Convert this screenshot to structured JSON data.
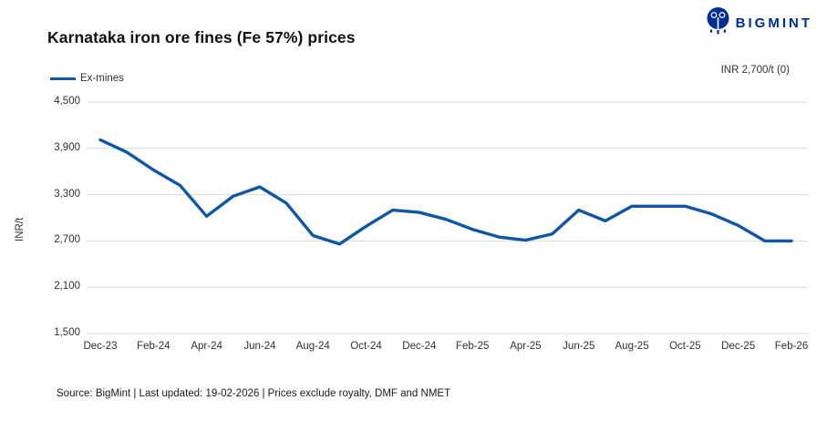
{
  "header": {
    "title": "Karnataka iron ore fines (Fe 57%) prices",
    "brand": {
      "name": "BIGMINT",
      "color": "#002d92"
    }
  },
  "legend": {
    "label": "Ex-mines"
  },
  "annotation": {
    "latest_price": "INR 2,700/t (0)"
  },
  "y_axis_title": "INR/t",
  "footer": {
    "text": "Source: BigMint | Last updated: 19-02-2026 | Prices exclude royalty, DMF and NMET"
  },
  "chart_data": {
    "type": "line",
    "title": "Karnataka iron ore fines (Fe 57%) prices",
    "xlabel": "",
    "ylabel": "INR/t",
    "ylim": [
      1500,
      4500
    ],
    "yticks": [
      4500,
      3900,
      3300,
      2700,
      2100,
      1500
    ],
    "ytick_labels": [
      "4,500",
      "3,900",
      "3,300",
      "2,700",
      "2,100",
      "1,500"
    ],
    "grid": true,
    "legend_position": "top-left",
    "x": [
      "Dec-23",
      "Jan-24",
      "Feb-24",
      "Mar-24",
      "Apr-24",
      "May-24",
      "Jun-24",
      "Jul-24",
      "Aug-24",
      "Sep-24",
      "Oct-24",
      "Nov-24",
      "Dec-24",
      "Jan-25",
      "Feb-25",
      "Mar-25",
      "Apr-25",
      "May-25",
      "Jun-25",
      "Jul-25",
      "Aug-25",
      "Sep-25",
      "Oct-25",
      "Nov-25",
      "Dec-25",
      "Jan-26",
      "Feb-26"
    ],
    "xtick_every": 2,
    "series": [
      {
        "name": "Ex-mines",
        "color": "#0f56a5",
        "values": [
          4010,
          3850,
          3620,
          3420,
          3020,
          3280,
          3400,
          3190,
          2770,
          2660,
          2890,
          3100,
          3070,
          2980,
          2850,
          2750,
          2710,
          2790,
          3100,
          2960,
          3150,
          3150,
          3150,
          3050,
          2900,
          2700,
          2700
        ]
      }
    ],
    "annotation": "INR 2,700/t (0)",
    "gridline_color": "#d9d9d9"
  }
}
